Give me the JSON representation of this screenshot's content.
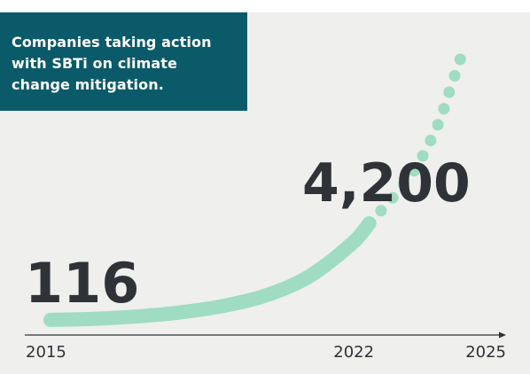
{
  "title_lines": [
    "Companies taking action",
    "with SBTi on climate",
    "change mitigation."
  ],
  "colors": {
    "panel_background": "#efefed",
    "title_background": "#0b5a69",
    "title_text": "#ffffff",
    "curve": "#9fdcc1",
    "text": "#2f3337"
  },
  "chart_data": {
    "type": "line",
    "xlim": [
      2015,
      2025
    ],
    "ylim": [
      0,
      12000
    ],
    "x_ticks": [
      "2015",
      "2022",
      "2025"
    ],
    "grid": false,
    "series": [
      {
        "style": "solid",
        "x": [
          2015,
          2016,
          2017,
          2018,
          2019,
          2020,
          2021,
          2022,
          2022.4
        ],
        "values": [
          116,
          160,
          260,
          430,
          700,
          1150,
          1950,
          3350,
          4200
        ]
      },
      {
        "style": "dotted",
        "x": [
          2022.4,
          2023,
          2023.5,
          2024,
          2024.3,
          2024.6
        ],
        "values": [
          4200,
          5400,
          6600,
          8400,
          10000,
          11600
        ]
      }
    ],
    "annotations": [
      {
        "text": "116",
        "x": 2015,
        "y": 116
      },
      {
        "text": "4,200",
        "x": 2022.4,
        "y": 4200
      }
    ]
  }
}
